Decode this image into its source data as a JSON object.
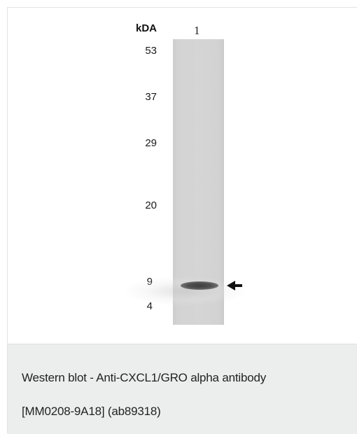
{
  "figure": {
    "unit_label": "kDA",
    "lane_label": "1",
    "markers": [
      "53",
      "37",
      "29",
      "20",
      "9",
      "4"
    ]
  },
  "caption": {
    "line1": "Western blot - Anti-CXCL1/GRO alpha antibody",
    "line2": "[MM0208-9A18] (ab89318)"
  },
  "colors": {
    "caption_background": "#eceeee",
    "lane_gray": "#d5d5d5",
    "band_dark": "#3e3e3e"
  },
  "icons": {
    "band_pointer": "arrow-left-icon"
  }
}
